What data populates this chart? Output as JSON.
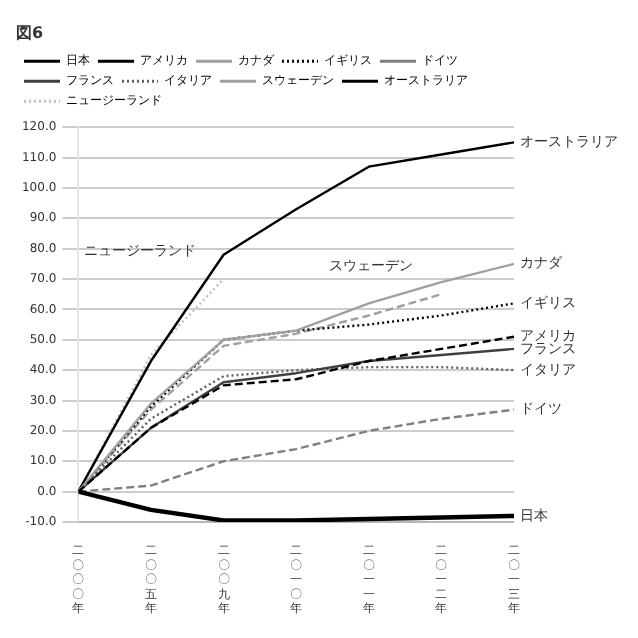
{
  "chart_data": {
    "type": "line",
    "title": "図6",
    "categories": [
      "二〇〇〇年",
      "二〇〇五年",
      "二〇〇九年",
      "二〇一〇年",
      "二〇一一年",
      "二〇一二年",
      "二〇一三年"
    ],
    "ylim": [
      -10,
      120
    ],
    "yticks": [
      {
        "value": -10,
        "label": "-10.0"
      },
      {
        "value": 0,
        "label": "0.0"
      },
      {
        "value": 10,
        "label": "10.0"
      },
      {
        "value": 20,
        "label": "20.0"
      },
      {
        "value": 30,
        "label": "30.0"
      },
      {
        "value": 40,
        "label": "40.0"
      },
      {
        "value": 50,
        "label": "50.0"
      },
      {
        "value": 60,
        "label": "60.0"
      },
      {
        "value": 70,
        "label": "70.0"
      },
      {
        "value": 80,
        "label": "80.0"
      },
      {
        "value": 90,
        "label": "90.0"
      },
      {
        "value": 100,
        "label": "100.0"
      },
      {
        "value": 110,
        "label": "110.0"
      },
      {
        "value": 120,
        "label": "120.0"
      }
    ],
    "grid": "y",
    "legend": "top left",
    "marker": "none",
    "series": [
      {
        "name": "日本",
        "color": "#000000",
        "line_style": "solid",
        "values": [
          0,
          -6,
          -9.5,
          -9.5,
          -9,
          -8.5,
          -8
        ]
      },
      {
        "name": "アメリカ",
        "color": "#000000",
        "line_style": "dashed",
        "values": [
          0,
          21,
          35,
          37,
          43,
          47,
          51
        ]
      },
      {
        "name": "カナダ",
        "color": "#a0a0a0",
        "line_style": "solid",
        "values": [
          0,
          29,
          50,
          53,
          62,
          69,
          75
        ]
      },
      {
        "name": "イギリス",
        "color": "#000000",
        "line_style": "dotted",
        "values": [
          0,
          28,
          50,
          53,
          55,
          58,
          62
        ]
      },
      {
        "name": "ドイツ",
        "color": "#808080",
        "line_style": "dashed",
        "values": [
          0,
          2,
          10,
          14,
          20,
          24,
          27
        ]
      },
      {
        "name": "フランス",
        "color": "#404040",
        "line_style": "solid",
        "values": [
          0,
          21,
          36,
          39,
          43,
          45,
          47
        ]
      },
      {
        "name": "イタリア",
        "color": "#606060",
        "line_style": "dotted",
        "values": [
          0,
          24,
          38,
          40,
          41,
          41,
          40
        ]
      },
      {
        "name": "スウェーデン",
        "color": "#a0a0a0",
        "line_style": "dashed",
        "values": [
          0,
          27,
          48,
          52,
          58,
          65,
          null
        ]
      },
      {
        "name": "オーストラリア",
        "color": "#000000",
        "line_style": "solid",
        "values": [
          0,
          43,
          78,
          93,
          107,
          111,
          115
        ]
      },
      {
        "name": "ニュージーランド",
        "color": "#c0c0c0",
        "line_style": "dotted",
        "values": [
          0,
          45,
          70,
          null,
          null,
          null,
          null
        ]
      }
    ]
  }
}
